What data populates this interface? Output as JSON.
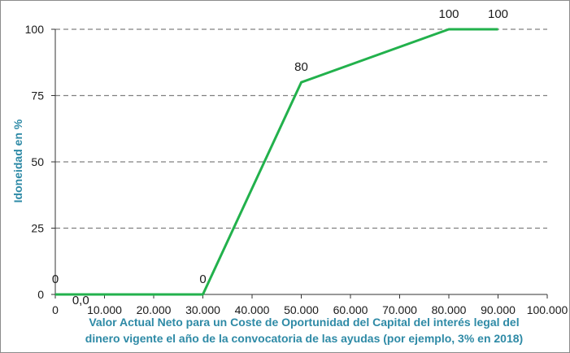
{
  "chart_data": {
    "type": "line",
    "title": "",
    "ylabel": "Idoneidad en %",
    "xlabel_lines": [
      "Valor Actual Neto para un Coste de Oportunidad  del Capital del interés legal del",
      "dinero vigente el año de la convocatoria de las ayudas (por ejemplo, 3% en 2018)"
    ],
    "xlim": [
      0,
      100000
    ],
    "ylim": [
      0,
      100
    ],
    "x_ticks": [
      0,
      10000,
      20000,
      30000,
      40000,
      50000,
      60000,
      70000,
      80000,
      90000,
      100000
    ],
    "x_tick_labels": [
      "0",
      "10.000",
      "20.000",
      "30.000",
      "40.000",
      "50.000",
      "60.000",
      "70.000",
      "80.000",
      "90.000",
      "100.000"
    ],
    "y_ticks": [
      0,
      25,
      50,
      75,
      100
    ],
    "y_tick_labels": [
      "0",
      "25",
      "50",
      "75",
      "100"
    ],
    "grid": "horizontal-dashed",
    "series": [
      {
        "color": "#22b14c",
        "x": [
          0,
          30000,
          50000,
          80000,
          90000
        ],
        "y": [
          0,
          0,
          80,
          100,
          100
        ],
        "data_labels": [
          "0",
          "0",
          "80",
          "100",
          "100"
        ]
      }
    ],
    "annotations": [
      {
        "text": "0,0",
        "x": 5000,
        "y": 0,
        "color": "#e53935"
      }
    ],
    "colors": {
      "axis_label": "#2e8aa6",
      "grid": "#808080",
      "axis": "#333333"
    }
  }
}
